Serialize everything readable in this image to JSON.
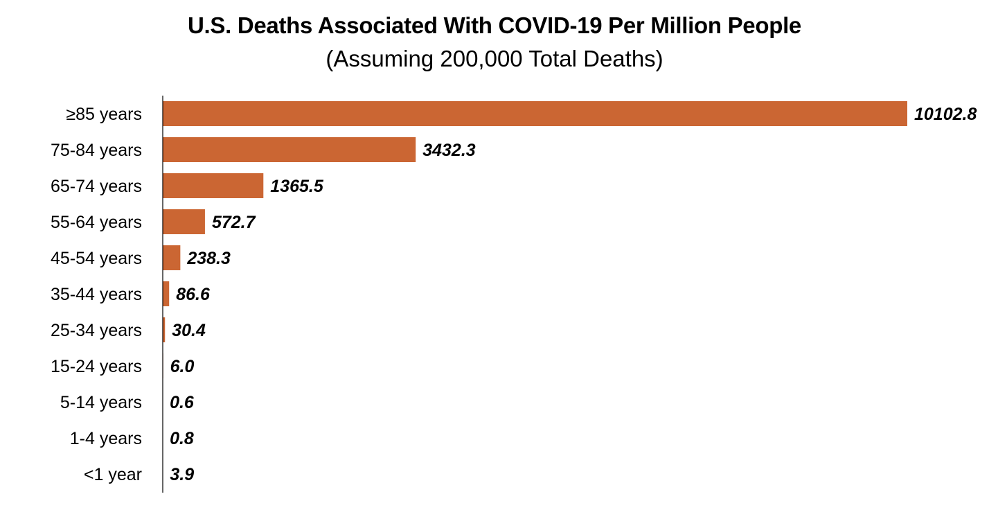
{
  "chart_data": {
    "type": "bar",
    "orientation": "horizontal",
    "title": "U.S. Deaths Associated With COVID-19 Per Million People",
    "subtitle": "(Assuming 200,000 Total Deaths)",
    "categories": [
      "≥85 years",
      "75-84 years",
      "65-74 years",
      "55-64 years",
      "45-54 years",
      "35-44 years",
      "25-34 years",
      "15-24 years",
      "5-14 years",
      "1-4 years",
      "<1 year"
    ],
    "values": [
      10102.8,
      3432.3,
      1365.5,
      572.7,
      238.3,
      86.6,
      30.4,
      6.0,
      0.6,
      0.8,
      3.9
    ],
    "value_labels": [
      "10102.8",
      "3432.3",
      "1365.5",
      "572.7",
      "238.3",
      "86.6",
      "30.4",
      "6.0",
      "0.6",
      "0.8",
      "3.9"
    ],
    "xlim": [
      0,
      10102.8
    ],
    "bar_color": "#CB6633",
    "axis_color": "#000000",
    "grid": false,
    "legend": "none"
  }
}
